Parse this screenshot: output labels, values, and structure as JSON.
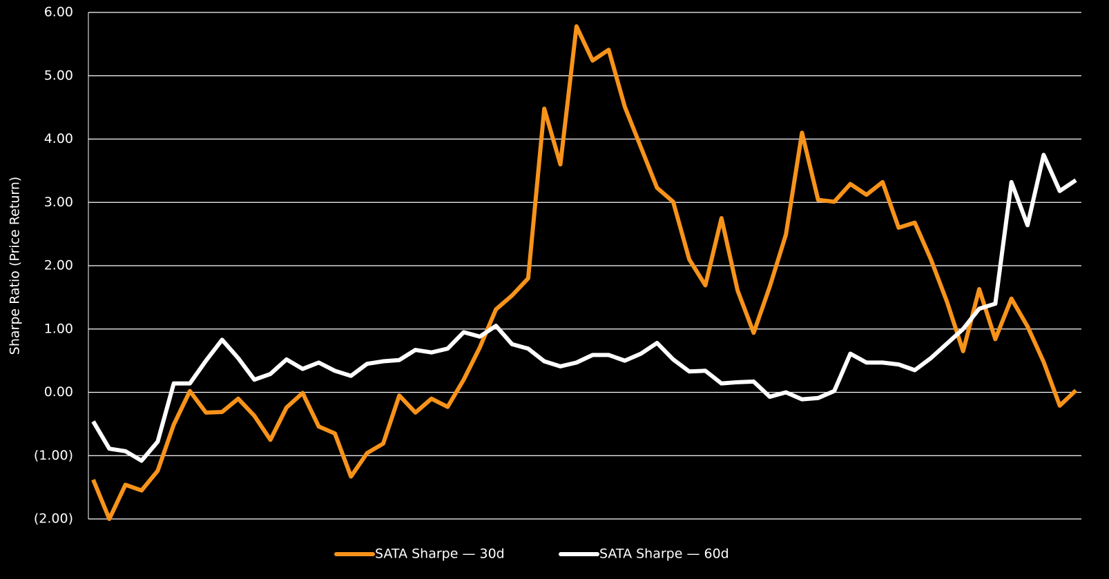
{
  "chart_data": {
    "type": "line",
    "y_label": "Sharpe Ratio (Price Return)",
    "categories": [
      null,
      null,
      null,
      null,
      null,
      null,
      null,
      null,
      null,
      null,
      null,
      null,
      null,
      null,
      null,
      null,
      null,
      null,
      null,
      null,
      null,
      null,
      null,
      null,
      null,
      null,
      null,
      null,
      null,
      null,
      null,
      null,
      null,
      null,
      null,
      null,
      null,
      null,
      null,
      null,
      null,
      null,
      null,
      null,
      null,
      null,
      null,
      null,
      null,
      null,
      null,
      null,
      null,
      null,
      null,
      null,
      null,
      null,
      null,
      null,
      null,
      null
    ],
    "series": [
      {
        "name": "SATA Sharpe — 30d",
        "color": "#f7931a",
        "values": [
          -1.38,
          -2.0,
          -1.46,
          -1.55,
          -1.24,
          -0.51,
          0.02,
          -0.32,
          -0.31,
          -0.1,
          -0.37,
          -0.75,
          -0.24,
          -0.01,
          -0.54,
          -0.65,
          -1.33,
          -0.96,
          -0.81,
          -0.05,
          -0.32,
          -0.1,
          -0.23,
          0.2,
          0.71,
          1.31,
          1.53,
          1.8,
          4.48,
          3.6,
          5.78,
          5.24,
          5.41,
          4.51,
          3.87,
          3.23,
          3.01,
          2.1,
          1.69,
          2.75,
          1.61,
          0.94,
          1.67,
          2.49,
          4.1,
          3.04,
          3.01,
          3.29,
          3.12,
          3.32,
          2.6,
          2.68,
          2.1,
          1.43,
          0.65,
          1.63,
          0.84,
          1.48,
          1.04,
          0.48,
          -0.21,
          0.03
        ]
      },
      {
        "name": "SATA Sharpe — 60d",
        "color": "#ffffff",
        "values": [
          -0.46,
          -0.89,
          -0.93,
          -1.08,
          -0.78,
          0.14,
          0.14,
          0.5,
          0.83,
          0.54,
          0.2,
          0.29,
          0.52,
          0.37,
          0.47,
          0.34,
          0.26,
          0.45,
          0.49,
          0.51,
          0.67,
          0.63,
          0.69,
          0.95,
          0.88,
          1.05,
          0.76,
          0.69,
          0.49,
          0.41,
          0.47,
          0.59,
          0.59,
          0.5,
          0.61,
          0.78,
          0.52,
          0.33,
          0.34,
          0.14,
          0.16,
          0.17,
          -0.07,
          0.0,
          -0.11,
          -0.09,
          0.02,
          0.61,
          0.47,
          0.47,
          0.44,
          0.35,
          0.54,
          0.77,
          1.0,
          1.32,
          1.4,
          3.32,
          2.64,
          3.75,
          3.18,
          3.35
        ]
      }
    ],
    "ylim": [
      -2,
      6
    ],
    "yticks": [
      {
        "value": -2,
        "label": "(2.00)"
      },
      {
        "value": -1,
        "label": "(1.00)"
      },
      {
        "value": 0,
        "label": "0.00"
      },
      {
        "value": 1,
        "label": "1.00"
      },
      {
        "value": 2,
        "label": "2.00"
      },
      {
        "value": 3,
        "label": "3.00"
      },
      {
        "value": 4,
        "label": "4.00"
      },
      {
        "value": 5,
        "label": "5.00"
      },
      {
        "value": 6,
        "label": "6.00"
      }
    ],
    "grid": true,
    "legend": "bottom"
  }
}
